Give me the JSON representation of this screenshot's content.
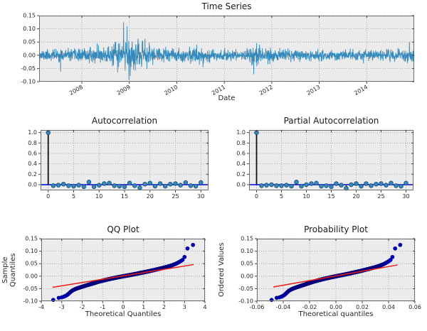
{
  "palette": {
    "figure_bg": "#ffffff",
    "axes_bg": "#ebebeb",
    "grid": "#9b9b9b",
    "spine": "#6e6e6e",
    "tick": "#333333",
    "text": "#262626",
    "series_blue": "#348abd",
    "zero_line_blue": "#0000f0",
    "stem_black": "#111111",
    "marker_fill": "#348abd",
    "marker_edge": "#1b4e79",
    "scatter_fill": "#0000cf",
    "scatter_edge": "#00007f",
    "fit_red": "#ee1b12"
  },
  "chart_data": [
    {
      "id": "timeseries",
      "type": "line",
      "title": "Time Series",
      "xlabel": "Date",
      "ylabel": "",
      "xlim": [
        2007.1,
        2015.0
      ],
      "ylim": [
        -0.1,
        0.15
      ],
      "xticks": {
        "values": [
          2008,
          2009,
          2010,
          2011,
          2012,
          2013,
          2014
        ],
        "labels": [
          "2008",
          "2009",
          "2010",
          "2011",
          "2012",
          "2013",
          "2014"
        ],
        "rotate": -30
      },
      "yticks": {
        "values": [
          -0.1,
          -0.05,
          0.0,
          0.05,
          0.1,
          0.15
        ],
        "labels": [
          "-0.10",
          "-0.05",
          "0.00",
          "0.05",
          "0.10",
          "0.15"
        ]
      },
      "series_gen": {
        "seed": 11,
        "n": 1960,
        "x_start": 2007.1,
        "x_end": 2015.0,
        "sigma_envelope": [
          [
            2007.1,
            0.01
          ],
          [
            2007.9,
            0.011
          ],
          [
            2008.5,
            0.013
          ],
          [
            2008.75,
            0.026
          ],
          [
            2009.0,
            0.03
          ],
          [
            2009.25,
            0.022
          ],
          [
            2009.5,
            0.014
          ],
          [
            2010.0,
            0.011
          ],
          [
            2010.45,
            0.014
          ],
          [
            2010.8,
            0.011
          ],
          [
            2011.4,
            0.01
          ],
          [
            2011.6,
            0.019
          ],
          [
            2011.85,
            0.016
          ],
          [
            2012.2,
            0.011
          ],
          [
            2012.8,
            0.009
          ],
          [
            2013.4,
            0.01
          ],
          [
            2014.2,
            0.009
          ],
          [
            2014.75,
            0.011
          ],
          [
            2015.0,
            0.013
          ]
        ],
        "spikes": [
          [
            2007.55,
            -0.062
          ],
          [
            2008.32,
            0.045
          ],
          [
            2008.35,
            0.038
          ],
          [
            2008.88,
            0.125
          ],
          [
            2008.91,
            -0.058
          ],
          [
            2008.95,
            0.11
          ],
          [
            2008.99,
            -0.094
          ],
          [
            2009.02,
            -0.079
          ],
          [
            2009.06,
            0.052
          ],
          [
            2009.33,
            0.063
          ],
          [
            2009.37,
            -0.052
          ],
          [
            2009.42,
            0.048
          ],
          [
            2010.42,
            0.04
          ],
          [
            2010.55,
            -0.046
          ],
          [
            2011.62,
            -0.072
          ],
          [
            2011.68,
            0.046
          ],
          [
            2011.74,
            0.04
          ],
          [
            2013.93,
            -0.031
          ],
          [
            2014.9,
            0.05
          ]
        ]
      }
    },
    {
      "id": "acf",
      "type": "stem",
      "title": "Autocorrelation",
      "xlabel": "",
      "ylabel": "",
      "xlim": [
        -1.5,
        31.5
      ],
      "ylim": [
        -0.11,
        1.05
      ],
      "xticks": {
        "values": [
          0,
          5,
          10,
          15,
          20,
          25,
          30
        ],
        "labels": [
          "0",
          "5",
          "10",
          "15",
          "20",
          "25",
          "30"
        ]
      },
      "yticks": {
        "values": [
          0.0,
          0.2,
          0.4,
          0.6,
          0.8,
          1.0
        ],
        "labels": [
          "0.0",
          "0.2",
          "0.4",
          "0.6",
          "0.8",
          "1.0"
        ]
      },
      "values": [
        1.0,
        -0.02,
        -0.01,
        0.01,
        -0.02,
        -0.03,
        -0.01,
        -0.04,
        0.05,
        -0.04,
        -0.01,
        0.02,
        0.03,
        -0.02,
        -0.03,
        -0.04,
        0.03,
        -0.02,
        -0.06,
        0.01,
        0.03,
        -0.03,
        0.02,
        -0.03,
        0.01,
        0.02,
        -0.01,
        0.04,
        -0.02,
        -0.03,
        0.04
      ],
      "zero_line": 0.0
    },
    {
      "id": "pacf",
      "type": "stem",
      "title": "Partial Autocorrelation",
      "xlabel": "",
      "ylabel": "",
      "xlim": [
        -1.5,
        31.5
      ],
      "ylim": [
        -0.11,
        1.05
      ],
      "xticks": {
        "values": [
          0,
          5,
          10,
          15,
          20,
          25,
          30
        ],
        "labels": [
          "0",
          "5",
          "10",
          "15",
          "20",
          "25",
          "30"
        ]
      },
      "yticks": {
        "values": [
          0.0,
          0.2,
          0.4,
          0.6,
          0.8,
          1.0
        ],
        "labels": [
          "0.0",
          "0.2",
          "0.4",
          "0.6",
          "0.8",
          "1.0"
        ]
      },
      "values": [
        1.0,
        -0.02,
        -0.01,
        0.0,
        -0.02,
        -0.02,
        -0.01,
        -0.03,
        0.05,
        -0.03,
        0.0,
        0.02,
        0.03,
        -0.03,
        -0.02,
        -0.04,
        0.02,
        -0.01,
        -0.07,
        0.0,
        0.02,
        -0.03,
        0.02,
        -0.02,
        0.01,
        0.02,
        -0.01,
        0.03,
        -0.02,
        -0.03,
        0.03
      ],
      "zero_line": 0.0
    },
    {
      "id": "qq",
      "type": "qq",
      "title": "QQ Plot",
      "xlabel": "Theoretical Quantiles",
      "ylabel": "Sample Quantiles",
      "xlim": [
        -4,
        4
      ],
      "ylim": [
        -0.1,
        0.15
      ],
      "xticks": {
        "values": [
          -4,
          -3,
          -2,
          -1,
          0,
          1,
          2,
          3,
          4
        ],
        "labels": [
          "-4",
          "-3",
          "-2",
          "-1",
          "0",
          "1",
          "2",
          "3",
          "4"
        ]
      },
      "yticks": {
        "values": [
          -0.1,
          -0.05,
          0.0,
          0.05,
          0.1,
          0.15
        ],
        "labels": [
          "-0.10",
          "-0.05",
          "0.00",
          "0.05",
          "0.10",
          "0.15"
        ]
      },
      "n_points": 1960,
      "x_scale": 1,
      "quantile_curve": [
        [
          -3.29,
          -0.095
        ],
        [
          -3.16,
          -0.087
        ],
        [
          -3.04,
          -0.0855
        ],
        [
          -2.96,
          -0.084
        ],
        [
          -2.86,
          -0.081
        ],
        [
          -2.76,
          -0.0765
        ],
        [
          -2.66,
          -0.07
        ],
        [
          -2.56,
          -0.0625
        ],
        [
          -2.46,
          -0.0565
        ],
        [
          -2.36,
          -0.0525
        ],
        [
          -2.24,
          -0.0485
        ],
        [
          -2.1,
          -0.0448
        ],
        [
          -1.95,
          -0.0408
        ],
        [
          -1.8,
          -0.037
        ],
        [
          -1.65,
          -0.0333
        ],
        [
          -1.5,
          -0.0297
        ],
        [
          -1.35,
          -0.0258
        ],
        [
          -1.2,
          -0.0222
        ],
        [
          -1.05,
          -0.019
        ],
        [
          -0.9,
          -0.016
        ],
        [
          -0.75,
          -0.013
        ],
        [
          -0.6,
          -0.0102
        ],
        [
          -0.45,
          -0.0077
        ],
        [
          -0.3,
          -0.0052
        ],
        [
          -0.15,
          -0.0028
        ],
        [
          0.0,
          -0.0005
        ],
        [
          0.15,
          0.0018
        ],
        [
          0.3,
          0.004
        ],
        [
          0.45,
          0.0063
        ],
        [
          0.6,
          0.0087
        ],
        [
          0.75,
          0.0112
        ],
        [
          0.9,
          0.0138
        ],
        [
          1.05,
          0.0163
        ],
        [
          1.2,
          0.0188
        ],
        [
          1.35,
          0.0215
        ],
        [
          1.5,
          0.0243
        ],
        [
          1.65,
          0.0272
        ],
        [
          1.8,
          0.0301
        ],
        [
          1.95,
          0.033
        ],
        [
          2.1,
          0.0362
        ],
        [
          2.25,
          0.0398
        ],
        [
          2.4,
          0.0438
        ],
        [
          2.55,
          0.0487
        ],
        [
          2.7,
          0.0547
        ],
        [
          2.82,
          0.0605
        ],
        [
          2.92,
          0.066
        ],
        [
          2.99,
          0.069
        ],
        [
          3.05,
          0.106
        ],
        [
          3.17,
          0.112
        ],
        [
          3.29,
          0.125
        ]
      ],
      "fit_line": [
        [
          -3.45,
          -0.0445
        ],
        [
          3.45,
          0.0465
        ]
      ]
    },
    {
      "id": "prob",
      "type": "qq",
      "title": "Probability Plot",
      "xlabel": "Theoretical quantiles",
      "ylabel": "Ordered Values",
      "xlim": [
        -0.06,
        0.06
      ],
      "ylim": [
        -0.1,
        0.15
      ],
      "xticks": {
        "values": [
          -0.06,
          -0.04,
          -0.02,
          0.0,
          0.02,
          0.04,
          0.06
        ],
        "labels": [
          "-0.06",
          "-0.04",
          "-0.02",
          "0.00",
          "0.02",
          "0.04",
          "0.06"
        ]
      },
      "yticks": {
        "values": [
          -0.1,
          -0.05,
          0.0,
          0.05,
          0.1,
          0.15
        ],
        "labels": [
          "-0.10",
          "-0.05",
          "0.00",
          "0.05",
          "0.10",
          "0.15"
        ]
      },
      "n_points": 1960,
      "x_scale": 0.0143,
      "quantile_curve": [
        [
          -3.29,
          -0.095
        ],
        [
          -3.16,
          -0.087
        ],
        [
          -3.04,
          -0.0855
        ],
        [
          -2.96,
          -0.084
        ],
        [
          -2.86,
          -0.081
        ],
        [
          -2.76,
          -0.0765
        ],
        [
          -2.66,
          -0.07
        ],
        [
          -2.56,
          -0.0625
        ],
        [
          -2.46,
          -0.0565
        ],
        [
          -2.36,
          -0.0525
        ],
        [
          -2.24,
          -0.0485
        ],
        [
          -2.1,
          -0.0448
        ],
        [
          -1.95,
          -0.0408
        ],
        [
          -1.8,
          -0.037
        ],
        [
          -1.65,
          -0.0333
        ],
        [
          -1.5,
          -0.0297
        ],
        [
          -1.35,
          -0.0258
        ],
        [
          -1.2,
          -0.0222
        ],
        [
          -1.05,
          -0.019
        ],
        [
          -0.9,
          -0.016
        ],
        [
          -0.75,
          -0.013
        ],
        [
          -0.6,
          -0.0102
        ],
        [
          -0.45,
          -0.0077
        ],
        [
          -0.3,
          -0.0052
        ],
        [
          -0.15,
          -0.0028
        ],
        [
          0.0,
          -0.0005
        ],
        [
          0.15,
          0.0018
        ],
        [
          0.3,
          0.004
        ],
        [
          0.45,
          0.0063
        ],
        [
          0.6,
          0.0087
        ],
        [
          0.75,
          0.0112
        ],
        [
          0.9,
          0.0138
        ],
        [
          1.05,
          0.0163
        ],
        [
          1.2,
          0.0188
        ],
        [
          1.35,
          0.0215
        ],
        [
          1.5,
          0.0243
        ],
        [
          1.65,
          0.0272
        ],
        [
          1.8,
          0.0301
        ],
        [
          1.95,
          0.033
        ],
        [
          2.1,
          0.0362
        ],
        [
          2.25,
          0.0398
        ],
        [
          2.4,
          0.0438
        ],
        [
          2.55,
          0.0487
        ],
        [
          2.7,
          0.0547
        ],
        [
          2.82,
          0.0605
        ],
        [
          2.92,
          0.066
        ],
        [
          2.99,
          0.069
        ],
        [
          3.05,
          0.106
        ],
        [
          3.17,
          0.112
        ],
        [
          3.29,
          0.125
        ]
      ],
      "fit_line": [
        [
          -0.0475,
          -0.0432
        ],
        [
          0.0468,
          0.0447
        ]
      ]
    }
  ]
}
